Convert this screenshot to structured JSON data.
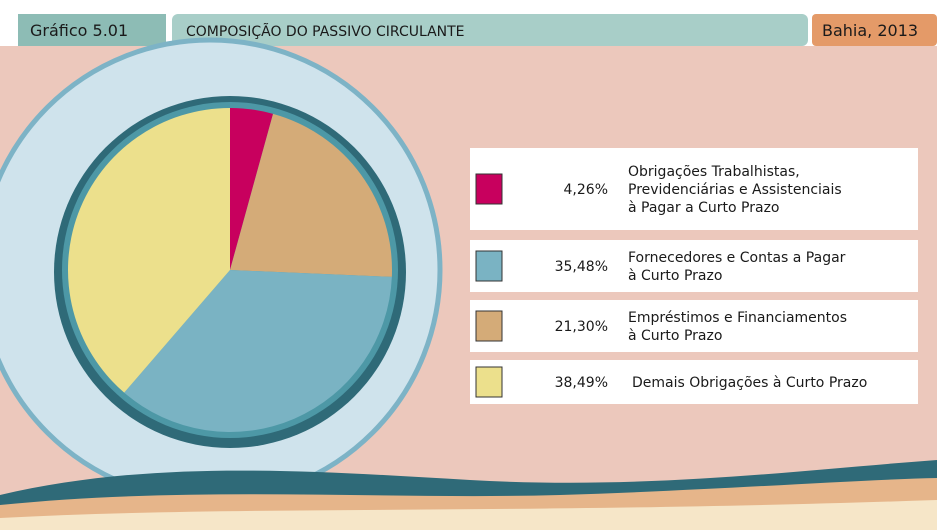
{
  "chart_data": {
    "type": "pie",
    "label": "Gráfico 5.01",
    "title": "COMPOSIÇÃO DO PASSIVO CIRCULANTE",
    "subtitle": "Bahia, 2013",
    "categories": [
      "Obrigações Trabalhistas,\nPrevidenciárias e Assistenciais\nà Pagar a Curto Prazo",
      "Fornecedores e Contas a Pagar\nà Curto Prazo",
      "Empréstimos e Financiamentos\nà Curto Prazo",
      "Demais Obrigações à Curto Prazo"
    ],
    "values": [
      4.26,
      35.48,
      21.3,
      38.49
    ],
    "value_labels": [
      "4,26%",
      "35,48%",
      "21,30%",
      "38,49%"
    ],
    "colors": [
      "#c8005e",
      "#7ab3c3",
      "#d4ab78",
      "#ece08c"
    ]
  }
}
